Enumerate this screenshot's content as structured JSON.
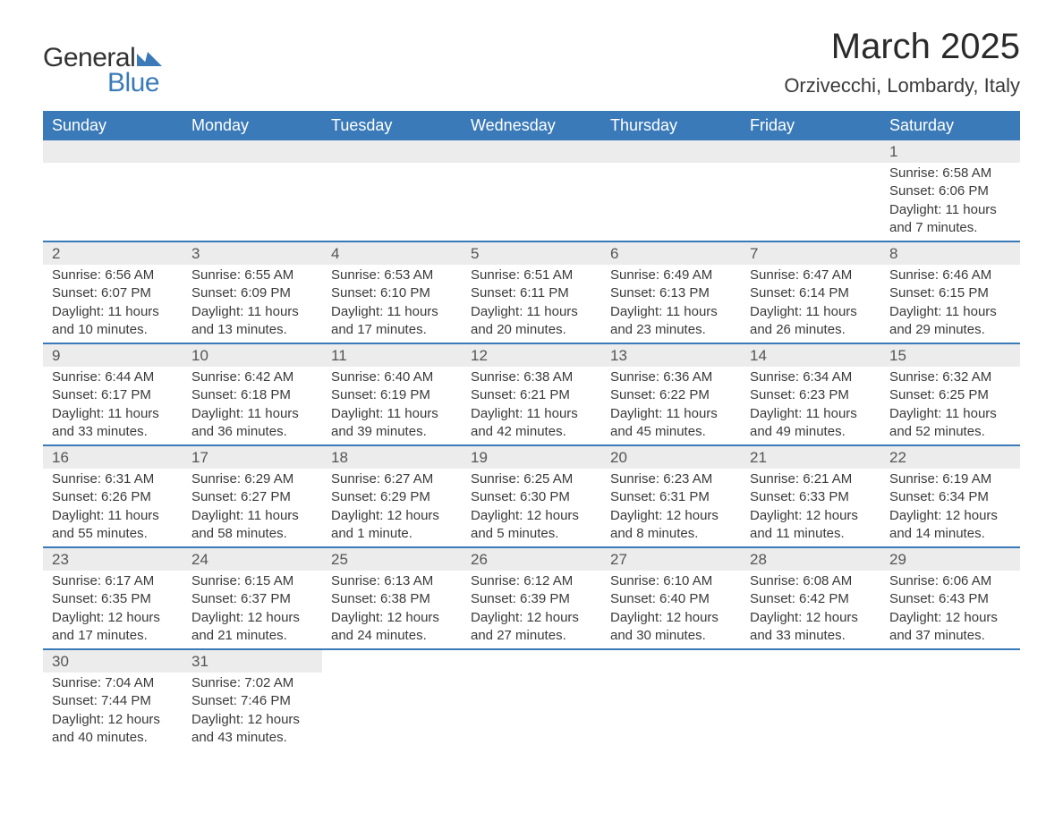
{
  "logo": {
    "text1": "General",
    "text2": "Blue",
    "mark_color": "#3a7ab8"
  },
  "title": "March 2025",
  "location": "Orzivecchi, Lombardy, Italy",
  "colors": {
    "header_bg": "#3a7ab8",
    "header_text": "#ffffff",
    "daynum_bg": "#ececec",
    "row_border": "#3a7ab8",
    "body_text": "#3a3a3a"
  },
  "fonts": {
    "title_size": 40,
    "location_size": 22,
    "header_size": 18,
    "daynum_size": 17,
    "cell_size": 15
  },
  "day_headers": [
    "Sunday",
    "Monday",
    "Tuesday",
    "Wednesday",
    "Thursday",
    "Friday",
    "Saturday"
  ],
  "weeks": [
    [
      null,
      null,
      null,
      null,
      null,
      null,
      {
        "n": "1",
        "sr": "Sunrise: 6:58 AM",
        "ss": "Sunset: 6:06 PM",
        "dl": "Daylight: 11 hours and 7 minutes."
      }
    ],
    [
      {
        "n": "2",
        "sr": "Sunrise: 6:56 AM",
        "ss": "Sunset: 6:07 PM",
        "dl": "Daylight: 11 hours and 10 minutes."
      },
      {
        "n": "3",
        "sr": "Sunrise: 6:55 AM",
        "ss": "Sunset: 6:09 PM",
        "dl": "Daylight: 11 hours and 13 minutes."
      },
      {
        "n": "4",
        "sr": "Sunrise: 6:53 AM",
        "ss": "Sunset: 6:10 PM",
        "dl": "Daylight: 11 hours and 17 minutes."
      },
      {
        "n": "5",
        "sr": "Sunrise: 6:51 AM",
        "ss": "Sunset: 6:11 PM",
        "dl": "Daylight: 11 hours and 20 minutes."
      },
      {
        "n": "6",
        "sr": "Sunrise: 6:49 AM",
        "ss": "Sunset: 6:13 PM",
        "dl": "Daylight: 11 hours and 23 minutes."
      },
      {
        "n": "7",
        "sr": "Sunrise: 6:47 AM",
        "ss": "Sunset: 6:14 PM",
        "dl": "Daylight: 11 hours and 26 minutes."
      },
      {
        "n": "8",
        "sr": "Sunrise: 6:46 AM",
        "ss": "Sunset: 6:15 PM",
        "dl": "Daylight: 11 hours and 29 minutes."
      }
    ],
    [
      {
        "n": "9",
        "sr": "Sunrise: 6:44 AM",
        "ss": "Sunset: 6:17 PM",
        "dl": "Daylight: 11 hours and 33 minutes."
      },
      {
        "n": "10",
        "sr": "Sunrise: 6:42 AM",
        "ss": "Sunset: 6:18 PM",
        "dl": "Daylight: 11 hours and 36 minutes."
      },
      {
        "n": "11",
        "sr": "Sunrise: 6:40 AM",
        "ss": "Sunset: 6:19 PM",
        "dl": "Daylight: 11 hours and 39 minutes."
      },
      {
        "n": "12",
        "sr": "Sunrise: 6:38 AM",
        "ss": "Sunset: 6:21 PM",
        "dl": "Daylight: 11 hours and 42 minutes."
      },
      {
        "n": "13",
        "sr": "Sunrise: 6:36 AM",
        "ss": "Sunset: 6:22 PM",
        "dl": "Daylight: 11 hours and 45 minutes."
      },
      {
        "n": "14",
        "sr": "Sunrise: 6:34 AM",
        "ss": "Sunset: 6:23 PM",
        "dl": "Daylight: 11 hours and 49 minutes."
      },
      {
        "n": "15",
        "sr": "Sunrise: 6:32 AM",
        "ss": "Sunset: 6:25 PM",
        "dl": "Daylight: 11 hours and 52 minutes."
      }
    ],
    [
      {
        "n": "16",
        "sr": "Sunrise: 6:31 AM",
        "ss": "Sunset: 6:26 PM",
        "dl": "Daylight: 11 hours and 55 minutes."
      },
      {
        "n": "17",
        "sr": "Sunrise: 6:29 AM",
        "ss": "Sunset: 6:27 PM",
        "dl": "Daylight: 11 hours and 58 minutes."
      },
      {
        "n": "18",
        "sr": "Sunrise: 6:27 AM",
        "ss": "Sunset: 6:29 PM",
        "dl": "Daylight: 12 hours and 1 minute."
      },
      {
        "n": "19",
        "sr": "Sunrise: 6:25 AM",
        "ss": "Sunset: 6:30 PM",
        "dl": "Daylight: 12 hours and 5 minutes."
      },
      {
        "n": "20",
        "sr": "Sunrise: 6:23 AM",
        "ss": "Sunset: 6:31 PM",
        "dl": "Daylight: 12 hours and 8 minutes."
      },
      {
        "n": "21",
        "sr": "Sunrise: 6:21 AM",
        "ss": "Sunset: 6:33 PM",
        "dl": "Daylight: 12 hours and 11 minutes."
      },
      {
        "n": "22",
        "sr": "Sunrise: 6:19 AM",
        "ss": "Sunset: 6:34 PM",
        "dl": "Daylight: 12 hours and 14 minutes."
      }
    ],
    [
      {
        "n": "23",
        "sr": "Sunrise: 6:17 AM",
        "ss": "Sunset: 6:35 PM",
        "dl": "Daylight: 12 hours and 17 minutes."
      },
      {
        "n": "24",
        "sr": "Sunrise: 6:15 AM",
        "ss": "Sunset: 6:37 PM",
        "dl": "Daylight: 12 hours and 21 minutes."
      },
      {
        "n": "25",
        "sr": "Sunrise: 6:13 AM",
        "ss": "Sunset: 6:38 PM",
        "dl": "Daylight: 12 hours and 24 minutes."
      },
      {
        "n": "26",
        "sr": "Sunrise: 6:12 AM",
        "ss": "Sunset: 6:39 PM",
        "dl": "Daylight: 12 hours and 27 minutes."
      },
      {
        "n": "27",
        "sr": "Sunrise: 6:10 AM",
        "ss": "Sunset: 6:40 PM",
        "dl": "Daylight: 12 hours and 30 minutes."
      },
      {
        "n": "28",
        "sr": "Sunrise: 6:08 AM",
        "ss": "Sunset: 6:42 PM",
        "dl": "Daylight: 12 hours and 33 minutes."
      },
      {
        "n": "29",
        "sr": "Sunrise: 6:06 AM",
        "ss": "Sunset: 6:43 PM",
        "dl": "Daylight: 12 hours and 37 minutes."
      }
    ],
    [
      {
        "n": "30",
        "sr": "Sunrise: 7:04 AM",
        "ss": "Sunset: 7:44 PM",
        "dl": "Daylight: 12 hours and 40 minutes."
      },
      {
        "n": "31",
        "sr": "Sunrise: 7:02 AM",
        "ss": "Sunset: 7:46 PM",
        "dl": "Daylight: 12 hours and 43 minutes."
      },
      null,
      null,
      null,
      null,
      null
    ]
  ]
}
